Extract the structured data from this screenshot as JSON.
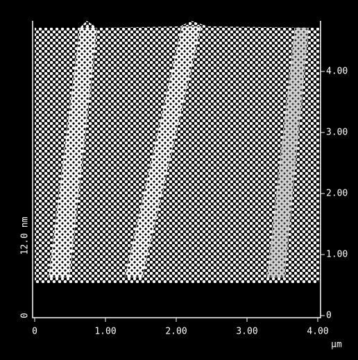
{
  "x_axis": {
    "ticks": [
      "0",
      "1.00",
      "2.00",
      "3.00",
      "4.00"
    ],
    "unit": "µm"
  },
  "y_axis_right": {
    "ticks": [
      "0",
      "1.00",
      "2.00",
      "3.00",
      "4.00"
    ]
  },
  "z_scale": {
    "max": "12.0 nm",
    "min": "0"
  }
}
